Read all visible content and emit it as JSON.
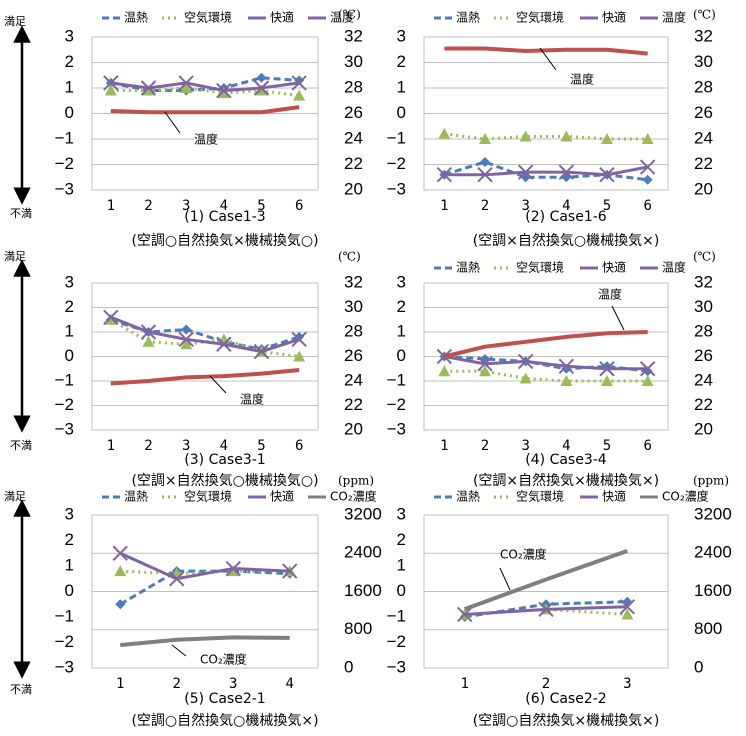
{
  "side_labels": {
    "satisfied": "満足",
    "dissatisfied": "不満"
  },
  "chart_data": [
    {
      "type": "line",
      "caption": "(1) Case1-3",
      "subcaption": "(空調○自然換気×機械換気○)",
      "categories": [
        "1",
        "2",
        "3",
        "4",
        "5",
        "6"
      ],
      "ylim": [
        -3,
        3
      ],
      "yticks": [
        {
          "value": -3,
          "label": "−3"
        },
        {
          "value": -2,
          "label": "−2"
        },
        {
          "value": -1,
          "label": "−1"
        },
        0,
        1,
        2,
        3
      ],
      "y2lim": [
        20,
        32
      ],
      "y2ticks": [
        20,
        22,
        24,
        26,
        28,
        30,
        32
      ],
      "y2unit": "(℃)",
      "legend": true,
      "annotation": "温度",
      "grid": true,
      "series": [
        {
          "name": "温熱",
          "color": "#4a7ebb",
          "values": [
            1.2,
            0.9,
            0.9,
            1.0,
            1.4,
            1.3
          ]
        },
        {
          "name": "空気環境",
          "color": "#9bbb59",
          "values": [
            0.9,
            0.9,
            1.0,
            0.8,
            0.9,
            0.7
          ]
        },
        {
          "name": "快適",
          "color": "#8064a2",
          "values": [
            1.2,
            1.0,
            1.2,
            0.9,
            1.0,
            1.2
          ]
        },
        {
          "name": "温度",
          "color": "#c0504d",
          "axis": "y2",
          "values": [
            26.2,
            26.1,
            26.1,
            26.1,
            26.1,
            26.5
          ]
        }
      ]
    },
    {
      "type": "line",
      "caption": "(2) Case1-6",
      "subcaption": "(空調×自然換気○機械換気×)",
      "categories": [
        "1",
        "2",
        "3",
        "4",
        "5",
        "6"
      ],
      "ylim": [
        -3,
        3
      ],
      "yticks": [
        {
          "value": -3,
          "label": "−3"
        },
        {
          "value": -2,
          "label": "−2"
        },
        {
          "value": -1,
          "label": "−1"
        },
        0,
        1,
        2,
        3
      ],
      "y2lim": [
        20,
        32
      ],
      "y2ticks": [
        20,
        22,
        24,
        26,
        28,
        30,
        32
      ],
      "y2unit": "(℃)",
      "legend": true,
      "annotation": "温度",
      "grid": true,
      "series": [
        {
          "name": "温熱",
          "color": "#4a7ebb",
          "values": [
            -2.4,
            -1.9,
            -2.5,
            -2.5,
            -2.4,
            -2.6
          ]
        },
        {
          "name": "空気環境",
          "color": "#9bbb59",
          "values": [
            -0.8,
            -1.0,
            -0.9,
            -0.9,
            -1.0,
            -1.0
          ]
        },
        {
          "name": "快適",
          "color": "#8064a2",
          "values": [
            -2.4,
            -2.4,
            -2.3,
            -2.3,
            -2.4,
            -2.1
          ]
        },
        {
          "name": "温度",
          "color": "#c0504d",
          "axis": "y2",
          "values": [
            31.1,
            31.1,
            30.9,
            31.0,
            31.0,
            30.7
          ]
        }
      ]
    },
    {
      "type": "line",
      "caption": "(3) Case3-1",
      "subcaption": "(空調×自然換気○機械換気○)",
      "categories": [
        "1",
        "2",
        "3",
        "4",
        "5",
        "6"
      ],
      "ylim": [
        -3,
        3
      ],
      "yticks": [
        {
          "value": -3,
          "label": "−3"
        },
        {
          "value": -2,
          "label": "−2"
        },
        {
          "value": -1,
          "label": "−1"
        },
        0,
        1,
        2,
        3
      ],
      "y2lim": [
        20,
        32
      ],
      "y2ticks": [
        20,
        22,
        24,
        26,
        28,
        30,
        32
      ],
      "y2unit": "(℃)",
      "legend": false,
      "annotation": "温度",
      "grid": true,
      "series": [
        {
          "name": "温熱",
          "color": "#4a7ebb",
          "values": [
            1.5,
            1.0,
            1.1,
            0.6,
            0.3,
            0.8
          ]
        },
        {
          "name": "空気環境",
          "color": "#9bbb59",
          "values": [
            1.5,
            0.6,
            0.5,
            0.7,
            0.2,
            0.0
          ]
        },
        {
          "name": "快適",
          "color": "#8064a2",
          "values": [
            1.6,
            1.0,
            0.7,
            0.5,
            0.2,
            0.7
          ]
        },
        {
          "name": "温度",
          "color": "#c0504d",
          "axis": "y2",
          "values": [
            23.8,
            24.0,
            24.3,
            24.4,
            24.6,
            24.9
          ]
        }
      ]
    },
    {
      "type": "line",
      "caption": "(4) Case3-4",
      "subcaption": "(空調×自然換気×機械換気×)",
      "categories": [
        "1",
        "2",
        "3",
        "4",
        "5",
        "6"
      ],
      "ylim": [
        -3,
        3
      ],
      "yticks": [
        {
          "value": -3,
          "label": "−3"
        },
        {
          "value": -2,
          "label": "−2"
        },
        {
          "value": -1,
          "label": "−1"
        },
        0,
        1,
        2,
        3
      ],
      "y2lim": [
        20,
        32
      ],
      "y2ticks": [
        20,
        22,
        24,
        26,
        28,
        30,
        32
      ],
      "y2unit": "(℃)",
      "legend": true,
      "annotation": "温度",
      "grid": true,
      "series": [
        {
          "name": "温熱",
          "color": "#4a7ebb",
          "values": [
            0.0,
            -0.1,
            -0.2,
            -0.5,
            -0.4,
            -0.6
          ]
        },
        {
          "name": "空気環境",
          "color": "#9bbb59",
          "values": [
            -0.6,
            -0.6,
            -0.9,
            -1.0,
            -1.0,
            -1.0
          ]
        },
        {
          "name": "快適",
          "color": "#8064a2",
          "values": [
            0.0,
            -0.3,
            -0.2,
            -0.4,
            -0.5,
            -0.5
          ]
        },
        {
          "name": "温度",
          "color": "#c0504d",
          "axis": "y2",
          "values": [
            26.0,
            26.8,
            27.2,
            27.6,
            27.9,
            28.0
          ]
        }
      ]
    },
    {
      "type": "line",
      "caption": "(5) Case2-1",
      "subcaption": "(空調○自然換気○機械換気×)",
      "categories": [
        "1",
        "2",
        "3",
        "4"
      ],
      "ylim": [
        -3,
        3
      ],
      "yticks": [
        {
          "value": -3,
          "label": "−3"
        },
        {
          "value": -2,
          "label": "−2"
        },
        {
          "value": -1,
          "label": "−1"
        },
        0,
        1,
        2,
        3
      ],
      "y2lim": [
        0,
        3200
      ],
      "y2ticks": [
        0,
        800,
        1600,
        2400,
        3200
      ],
      "y2unit": "(ppm)",
      "legend": true,
      "annotation": "CO₂濃度",
      "grid": true,
      "series": [
        {
          "name": "温熱",
          "color": "#4a7ebb",
          "values": [
            -0.5,
            0.8,
            0.8,
            0.7
          ]
        },
        {
          "name": "空気環境",
          "color": "#9bbb59",
          "values": [
            0.8,
            0.7,
            0.8,
            0.8
          ]
        },
        {
          "name": "快適",
          "color": "#8064a2",
          "values": [
            1.5,
            0.5,
            0.9,
            0.8
          ]
        },
        {
          "name": "CO₂濃度",
          "color": "#7f7f7f",
          "axis": "y2",
          "values": [
            480,
            590,
            640,
            630
          ]
        }
      ]
    },
    {
      "type": "line",
      "caption": "(6) Case2-2",
      "subcaption": "(空調○自然換気×機械換気×)",
      "categories": [
        "1",
        "2",
        "3"
      ],
      "ylim": [
        -3,
        3
      ],
      "yticks": [
        {
          "value": -3,
          "label": "−3"
        },
        {
          "value": -2,
          "label": "−2"
        },
        {
          "value": -1,
          "label": "−1"
        },
        0,
        1,
        2,
        3
      ],
      "y2lim": [
        0,
        3200
      ],
      "y2ticks": [
        0,
        800,
        1600,
        2400,
        3200
      ],
      "y2unit": "(ppm)",
      "legend": true,
      "annotation": "CO₂濃度",
      "grid": true,
      "series": [
        {
          "name": "温熱",
          "color": "#4a7ebb",
          "values": [
            -1.0,
            -0.5,
            -0.4
          ]
        },
        {
          "name": "空気環境",
          "color": "#9bbb59",
          "values": [
            -0.9,
            -0.7,
            -0.9
          ]
        },
        {
          "name": "快適",
          "color": "#8064a2",
          "values": [
            -0.9,
            -0.7,
            -0.6
          ]
        },
        {
          "name": "CO₂濃度",
          "color": "#7f7f7f",
          "axis": "y2",
          "values": [
            1230,
            1850,
            2450
          ]
        }
      ]
    }
  ]
}
